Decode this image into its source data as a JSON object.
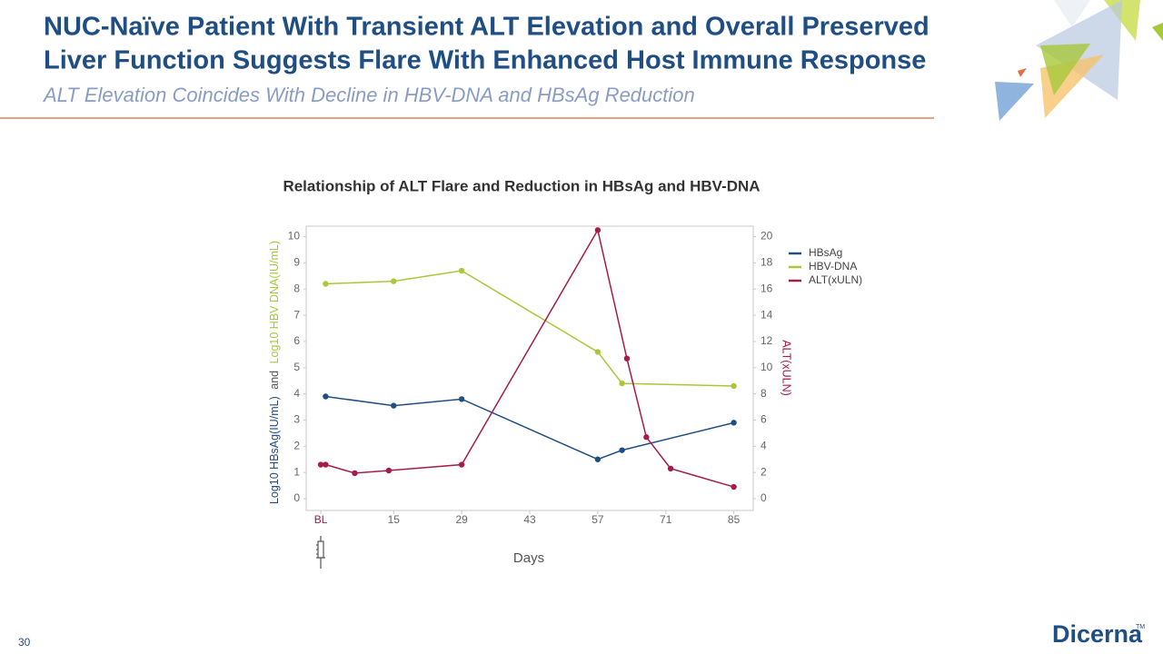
{
  "slide": {
    "title_lines": [
      "NUC-Naïve Patient With Transient ALT Elevation and Overall Preserved",
      "Liver Function Suggests Flare With Enhanced Host Immune Response"
    ],
    "subtitle": "ALT Elevation Coincides With Decline in HBV-DNA and HBsAg Reduction",
    "page_number": "30",
    "logo": "Dicerna",
    "logo_mark": "TM"
  },
  "chart_data": {
    "type": "line",
    "title": "Relationship of ALT Flare and Reduction in HBsAg and HBV-DNA",
    "x_label": "Days",
    "y_label_parts": [
      "Log10 HBsAg(IU/mL)",
      "and",
      "Log10 HBV DNA(IU/mL)"
    ],
    "y2_label": "ALT(xULN)",
    "xlim": [
      -3,
      89
    ],
    "xticks": [
      {
        "value": 0,
        "label": "BL"
      },
      15,
      29,
      43,
      57,
      71,
      85
    ],
    "ylim": [
      -0.45,
      10.4
    ],
    "yticks": [
      0,
      1,
      2,
      3,
      4,
      5,
      6,
      7,
      8,
      9,
      10
    ],
    "y2lim": [
      -0.9,
      20.8
    ],
    "y2ticks": [
      0,
      2,
      4,
      6,
      8,
      10,
      12,
      14,
      16,
      18,
      20
    ],
    "legend": "right",
    "series": [
      {
        "name": "HBsAg",
        "color": "#1f4e84",
        "x": [
          1,
          15,
          29,
          57,
          62,
          85
        ],
        "values": [
          3.9,
          3.55,
          3.8,
          1.5,
          1.85,
          2.9
        ]
      },
      {
        "name": "HBV-DNA",
        "color": "#a8c83a",
        "x": [
          1,
          15,
          29,
          57,
          62,
          85
        ],
        "values": [
          8.2,
          8.3,
          8.7,
          5.6,
          4.4,
          4.3
        ]
      },
      {
        "name": "ALT(xULN)",
        "color": "#a51c4c",
        "axis": "y2",
        "x": [
          0,
          1,
          7,
          14,
          29,
          57,
          63,
          67,
          72,
          85
        ],
        "values": [
          2.6,
          2.6,
          1.95,
          2.15,
          2.6,
          20.5,
          10.7,
          4.7,
          2.3,
          0.9
        ]
      }
    ]
  }
}
